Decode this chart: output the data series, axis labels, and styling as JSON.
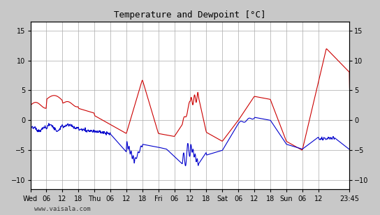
{
  "title": "Temperature and Dewpoint [°C]",
  "ylabel": "",
  "ylim": [
    -11.5,
    16.5
  ],
  "yticks": [
    -10,
    -5,
    0,
    5,
    10,
    15
  ],
  "xlabel": "",
  "footer": "www.vaisala.com",
  "bg_color": "#c8c8c8",
  "plot_bg_color": "#ffffff",
  "grid_color": "#aaaaaa",
  "temp_color": "#cc0000",
  "dewp_color": "#0000cc",
  "line_width": 0.8,
  "x_tick_labels": [
    "Wed",
    "06",
    "12",
    "18",
    "Thu",
    "06",
    "12",
    "18",
    "Fri",
    "06",
    "12",
    "18",
    "Sat",
    "06",
    "12",
    "18",
    "Sun",
    "06",
    "12",
    "23:45"
  ],
  "x_tick_positions": [
    0,
    6,
    12,
    18,
    24,
    30,
    36,
    42,
    48,
    54,
    60,
    66,
    72,
    78,
    84,
    90,
    96,
    102,
    108,
    119.75
  ],
  "total_hours": 119.75
}
